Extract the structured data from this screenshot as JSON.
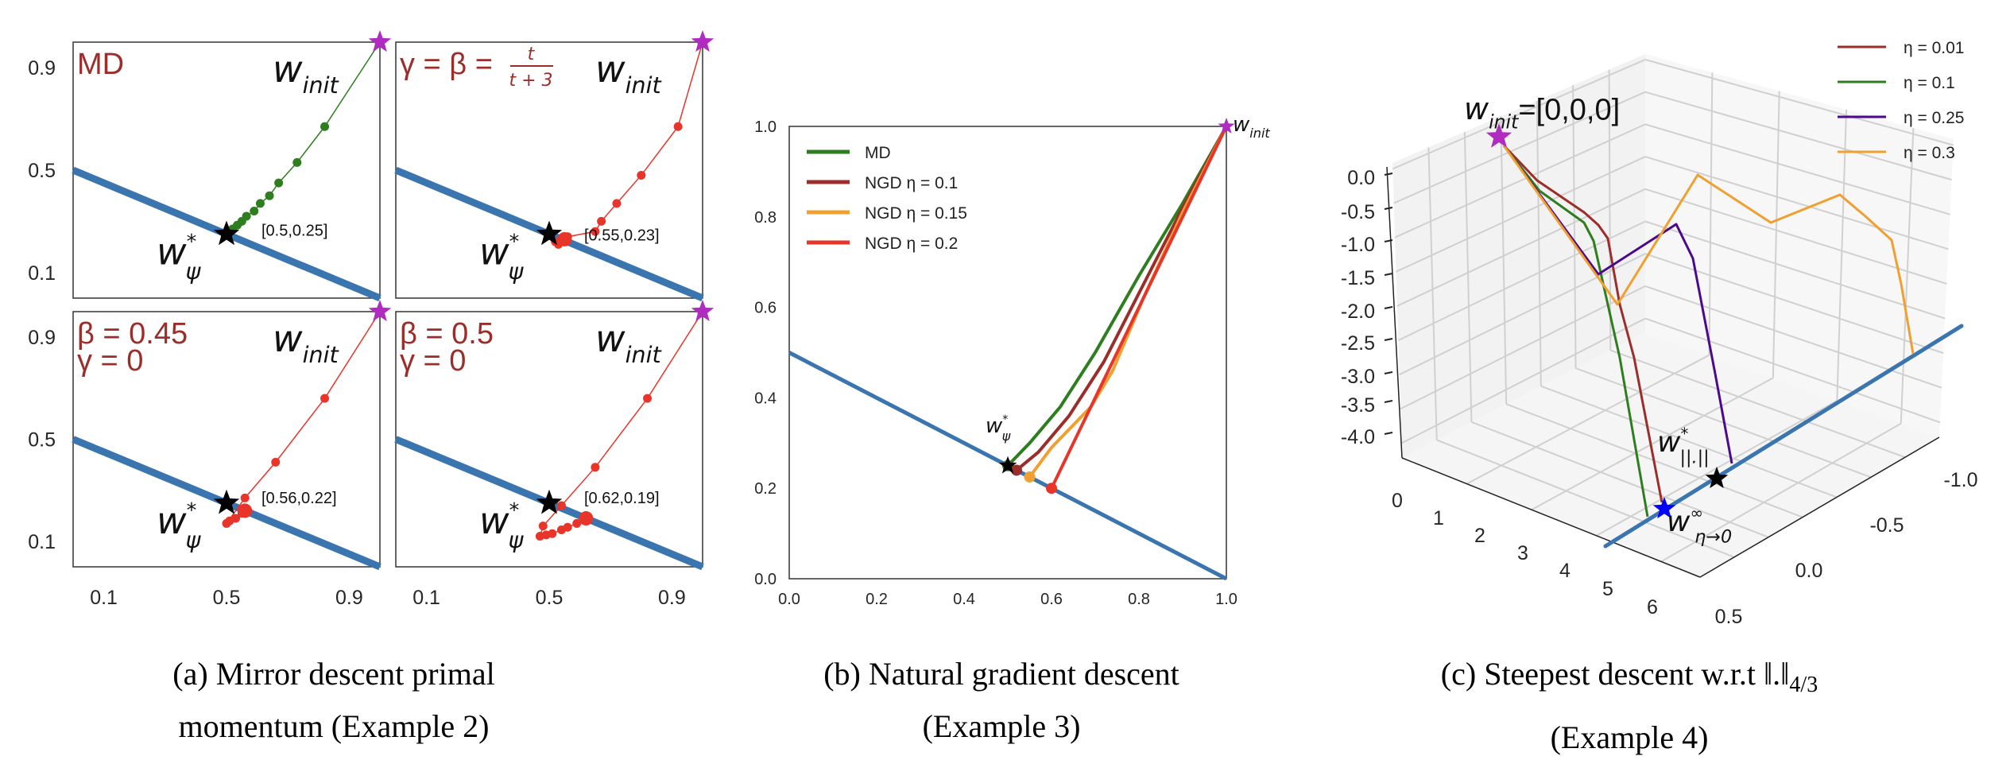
{
  "colors": {
    "constraint": "#3a75b0",
    "init_star": "#b02cc0",
    "optimum_star": "#000000",
    "md": "#2e7d1e",
    "momentum": "#e8352a",
    "title": "#9b2d2a",
    "ngd01": "#9b2d2a",
    "ngd015": "#f0a030",
    "ngd02": "#e8352a",
    "eta001": "#9b2d2a",
    "eta01": "#2e7d1e",
    "eta025": "#4b0a8c",
    "eta03": "#f0a030",
    "limit_star": "#0000ff"
  },
  "captions": {
    "a_line1": "(a) Mirror descent primal",
    "a_line2": "momentum (Example 2)",
    "b_line1": "(b) Natural gradient descent",
    "b_line2": "(Example 3)",
    "c_line1": "(c) Steepest descent w.r.t ‖.‖",
    "c_sub": "4/3",
    "c_line2": "(Example 4)"
  },
  "chart_data": [
    {
      "type": "line",
      "panel": "a",
      "xlim": [
        0,
        1
      ],
      "ylim": [
        0,
        1
      ],
      "xticks": [
        "0.1",
        "0.5",
        "0.9"
      ],
      "xtick_values": [
        0.1,
        0.5,
        0.9
      ],
      "yticks": [
        "0.9",
        "0.5",
        "0.1"
      ],
      "ytick_values": [
        0.9,
        0.5,
        0.1
      ],
      "grid": false,
      "init_label": "w",
      "init_sub": "init",
      "opt_label": "w",
      "opt_sup": "*",
      "opt_sub": "ψ",
      "constraint_line": [
        [
          0,
          0.5
        ],
        [
          1,
          0
        ]
      ],
      "subplots": [
        {
          "title_lines": [
            "MD"
          ],
          "frac": null,
          "series_color": "md",
          "final_label": "[0.5,0.25]",
          "points": [
            [
              1,
              1
            ],
            [
              0.82,
              0.67
            ],
            [
              0.73,
              0.53
            ],
            [
              0.67,
              0.45
            ],
            [
              0.64,
              0.4
            ],
            [
              0.61,
              0.37
            ],
            [
              0.59,
              0.34
            ],
            [
              0.565,
              0.32
            ],
            [
              0.55,
              0.3
            ],
            [
              0.535,
              0.285
            ],
            [
              0.52,
              0.27
            ],
            [
              0.51,
              0.26
            ],
            [
              0.5,
              0.25
            ]
          ]
        },
        {
          "title_lines": [
            "γ = β = "
          ],
          "frac": {
            "num": "t",
            "den": "t + 3"
          },
          "series_color": "momentum",
          "final_label": "[0.55,0.23]",
          "points": [
            [
              1,
              1
            ],
            [
              0.92,
              0.67
            ],
            [
              0.8,
              0.48
            ],
            [
              0.72,
              0.37
            ],
            [
              0.67,
              0.3
            ],
            [
              0.65,
              0.26
            ],
            [
              0.56,
              0.24
            ],
            [
              0.52,
              0.22
            ],
            [
              0.53,
              0.21
            ],
            [
              0.55,
              0.23
            ]
          ]
        },
        {
          "title_lines": [
            "β = 0.45",
            "γ = 0"
          ],
          "frac": null,
          "series_color": "momentum",
          "final_label": "[0.56,0.22]",
          "points": [
            [
              1,
              1
            ],
            [
              0.82,
              0.66
            ],
            [
              0.66,
              0.41
            ],
            [
              0.56,
              0.27
            ],
            [
              0.5,
              0.17
            ],
            [
              0.51,
              0.18
            ],
            [
              0.53,
              0.19
            ],
            [
              0.55,
              0.21
            ],
            [
              0.56,
              0.22
            ]
          ]
        },
        {
          "title_lines": [
            "β = 0.5",
            "γ = 0"
          ],
          "frac": null,
          "series_color": "momentum",
          "final_label": "[0.62,0.19]",
          "points": [
            [
              1,
              1
            ],
            [
              0.82,
              0.66
            ],
            [
              0.65,
              0.39
            ],
            [
              0.54,
              0.24
            ],
            [
              0.48,
              0.16
            ],
            [
              0.47,
              0.12
            ],
            [
              0.49,
              0.125
            ],
            [
              0.51,
              0.13
            ],
            [
              0.54,
              0.145
            ],
            [
              0.56,
              0.155
            ],
            [
              0.59,
              0.17
            ],
            [
              0.62,
              0.19
            ]
          ]
        }
      ]
    },
    {
      "type": "line",
      "panel": "b",
      "xlim": [
        0,
        1
      ],
      "ylim": [
        0,
        1
      ],
      "xticks": [
        "0.0",
        "0.2",
        "0.4",
        "0.6",
        "0.8",
        "1.0"
      ],
      "yticks": [
        "0.0",
        "0.2",
        "0.4",
        "0.6",
        "0.8",
        "1.0"
      ],
      "tick_values": [
        0,
        0.2,
        0.4,
        0.6,
        0.8,
        1.0
      ],
      "grid": false,
      "legend": "top-left",
      "init_label": "w",
      "init_sub": "init",
      "opt_label": "w",
      "opt_sup": "*",
      "opt_sub": "ψ",
      "constraint_line": [
        [
          0,
          0.5
        ],
        [
          1,
          0
        ]
      ],
      "series": [
        {
          "name": "MD",
          "color": "md",
          "points": [
            [
              1,
              1
            ],
            [
              0.9,
              0.83
            ],
            [
              0.8,
              0.67
            ],
            [
              0.7,
              0.5
            ],
            [
              0.62,
              0.38
            ],
            [
              0.55,
              0.3
            ],
            [
              0.5,
              0.25
            ]
          ]
        },
        {
          "name": "NGD η = 0.1",
          "color": "ngd01",
          "points": [
            [
              1,
              1
            ],
            [
              0.9,
              0.82
            ],
            [
              0.81,
              0.65
            ],
            [
              0.72,
              0.48
            ],
            [
              0.64,
              0.36
            ],
            [
              0.57,
              0.28
            ],
            [
              0.52,
              0.24
            ]
          ]
        },
        {
          "name": "NGD η = 0.15",
          "color": "ngd015",
          "points": [
            [
              1,
              1
            ],
            [
              0.9,
              0.81
            ],
            [
              0.81,
              0.62
            ],
            [
              0.74,
              0.46
            ],
            [
              0.69,
              0.38
            ],
            [
              0.6,
              0.29
            ],
            [
              0.55,
              0.225
            ]
          ]
        },
        {
          "name": "NGD η = 0.2",
          "color": "ngd02",
          "points": [
            [
              1,
              1
            ],
            [
              0.6,
              0.2
            ]
          ]
        }
      ]
    },
    {
      "type": "line3d",
      "panel": "c",
      "xticks": [
        "0",
        "1",
        "2",
        "3",
        "4",
        "5",
        "6"
      ],
      "yticks": [
        "-1.0",
        "-0.5",
        "0.0",
        "0.5"
      ],
      "zticks": [
        "0.0",
        "-0.5",
        "-1.0",
        "-1.5",
        "-2.0",
        "-2.5",
        "-3.0",
        "-3.5",
        "-4.0"
      ],
      "grid": true,
      "legend": "top-right",
      "init_label": "w",
      "init_sub": "init",
      "init_value": "=[0,0,0]",
      "opt_label": "w",
      "opt_sup": "*",
      "opt_sub": "||.||",
      "limit_label": "w",
      "limit_sup": "∞",
      "limit_sub": "η→0",
      "series": [
        {
          "name": "η = 0.01",
          "color": "eta001"
        },
        {
          "name": "η = 0.1",
          "color": "eta01"
        },
        {
          "name": "η = 0.25",
          "color": "eta025"
        },
        {
          "name": "η = 0.3",
          "color": "eta03"
        }
      ]
    }
  ]
}
